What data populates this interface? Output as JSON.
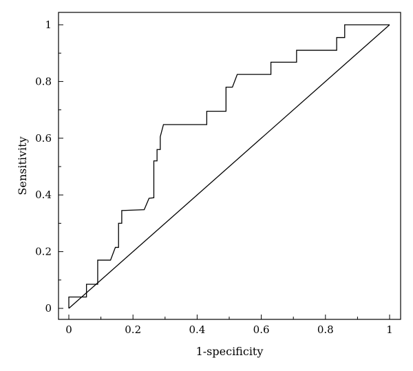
{
  "chart_data": {
    "type": "line",
    "title": "",
    "xlabel": "1-specificity",
    "ylabel": "Sensitivity",
    "xlim": [
      0,
      1
    ],
    "ylim": [
      0,
      1
    ],
    "x_ticks": [
      0,
      0.2,
      0.4,
      0.6,
      0.8,
      1
    ],
    "x_tick_labels": [
      "0",
      "0.2",
      "0.4",
      "0.6",
      "0.8",
      "1"
    ],
    "y_ticks": [
      0,
      0.2,
      0.4,
      0.6,
      0.8,
      1
    ],
    "y_tick_labels": [
      "0",
      "0.2",
      "0.4",
      "0.6",
      "0.8",
      "1"
    ],
    "grid": false,
    "legend": "none",
    "series": [
      {
        "style": "step",
        "color": "#000000",
        "points": [
          [
            0,
            0
          ],
          [
            0,
            0.04
          ],
          [
            0.055,
            0.04
          ],
          [
            0.055,
            0.085
          ],
          [
            0.09,
            0.085
          ],
          [
            0.09,
            0.17
          ],
          [
            0.13,
            0.17
          ],
          [
            0.145,
            0.215
          ],
          [
            0.155,
            0.215
          ],
          [
            0.155,
            0.3
          ],
          [
            0.165,
            0.3
          ],
          [
            0.165,
            0.345
          ],
          [
            0.235,
            0.348
          ],
          [
            0.25,
            0.388
          ],
          [
            0.265,
            0.39
          ],
          [
            0.265,
            0.52
          ],
          [
            0.275,
            0.52
          ],
          [
            0.275,
            0.56
          ],
          [
            0.285,
            0.56
          ],
          [
            0.285,
            0.605
          ],
          [
            0.295,
            0.648
          ],
          [
            0.43,
            0.648
          ],
          [
            0.43,
            0.695
          ],
          [
            0.49,
            0.695
          ],
          [
            0.49,
            0.78
          ],
          [
            0.51,
            0.78
          ],
          [
            0.525,
            0.825
          ],
          [
            0.63,
            0.825
          ],
          [
            0.63,
            0.868
          ],
          [
            0.71,
            0.868
          ],
          [
            0.71,
            0.91
          ],
          [
            0.835,
            0.91
          ],
          [
            0.835,
            0.955
          ],
          [
            0.86,
            0.955
          ],
          [
            0.86,
            1.0
          ],
          [
            1.0,
            1.0
          ]
        ]
      },
      {
        "style": "reference",
        "color": "#000000",
        "points": [
          [
            0,
            0
          ],
          [
            1,
            1
          ]
        ]
      }
    ]
  }
}
